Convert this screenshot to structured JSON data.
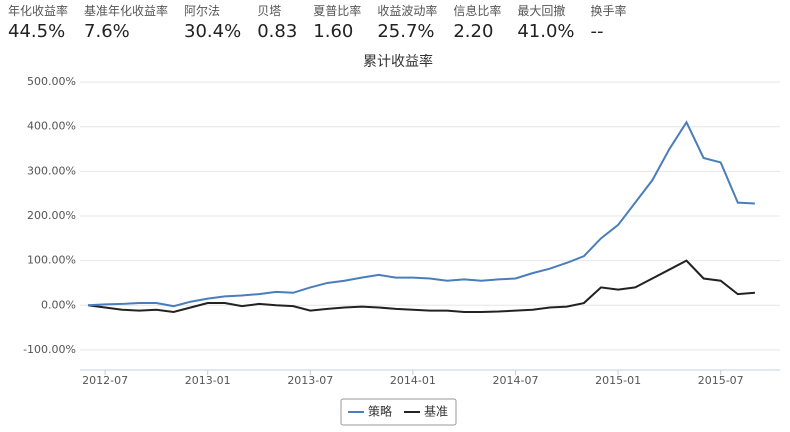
{
  "stats": [
    {
      "label": "年化收益率",
      "value": "44.5%"
    },
    {
      "label": "基准年化收益率",
      "value": "7.6%"
    },
    {
      "label": "阿尔法",
      "value": "30.4%"
    },
    {
      "label": "贝塔",
      "value": "0.83"
    },
    {
      "label": "夏普比率",
      "value": "1.60"
    },
    {
      "label": "收益波动率",
      "value": "25.7%"
    },
    {
      "label": "信息比率",
      "value": "2.20"
    },
    {
      "label": "最大回撤",
      "value": "41.0%"
    },
    {
      "label": "换手率",
      "value": "--"
    }
  ],
  "chart_data": {
    "type": "line",
    "title": "累计收益率",
    "x": [
      "2012-06",
      "2012-07",
      "2012-08",
      "2012-09",
      "2012-10",
      "2012-11",
      "2012-12",
      "2013-01",
      "2013-02",
      "2013-03",
      "2013-04",
      "2013-05",
      "2013-06",
      "2013-07",
      "2013-08",
      "2013-09",
      "2013-10",
      "2013-11",
      "2013-12",
      "2014-01",
      "2014-02",
      "2014-03",
      "2014-04",
      "2014-05",
      "2014-06",
      "2014-07",
      "2014-08",
      "2014-09",
      "2014-10",
      "2014-11",
      "2014-12",
      "2015-01",
      "2015-02",
      "2015-03",
      "2015-04",
      "2015-05",
      "2015-06",
      "2015-07",
      "2015-08",
      "2015-09"
    ],
    "series": [
      {
        "name": "策略",
        "color": "#4a7ebb",
        "values": [
          0,
          2,
          3,
          5,
          5,
          -2,
          8,
          15,
          20,
          22,
          25,
          30,
          28,
          40,
          50,
          55,
          62,
          68,
          62,
          62,
          60,
          55,
          58,
          55,
          58,
          60,
          72,
          82,
          95,
          110,
          150,
          180,
          230,
          280,
          350,
          410,
          330,
          320,
          230,
          228
        ]
      },
      {
        "name": "基准",
        "color": "#222222",
        "values": [
          0,
          -5,
          -10,
          -12,
          -10,
          -15,
          -5,
          5,
          5,
          -2,
          3,
          0,
          -2,
          -12,
          -8,
          -5,
          -3,
          -5,
          -8,
          -10,
          -12,
          -12,
          -15,
          -15,
          -14,
          -12,
          -10,
          -5,
          -3,
          5,
          40,
          35,
          40,
          60,
          80,
          100,
          60,
          55,
          25,
          28
        ]
      }
    ],
    "ylim": [
      -145,
      545
    ],
    "yticks": [
      {
        "value": -100,
        "label": "-100.00%"
      },
      {
        "value": 0,
        "label": "0.00%"
      },
      {
        "value": 100,
        "label": "100.00%"
      },
      {
        "value": 200,
        "label": "200.00%"
      },
      {
        "value": 300,
        "label": "300.00%"
      },
      {
        "value": 400,
        "label": "400.00%"
      },
      {
        "value": 500,
        "label": "500.00%"
      }
    ],
    "xticks": [
      "2012-07",
      "2013-01",
      "2013-07",
      "2014-01",
      "2014-07",
      "2015-01",
      "2015-07"
    ],
    "grid": true
  }
}
